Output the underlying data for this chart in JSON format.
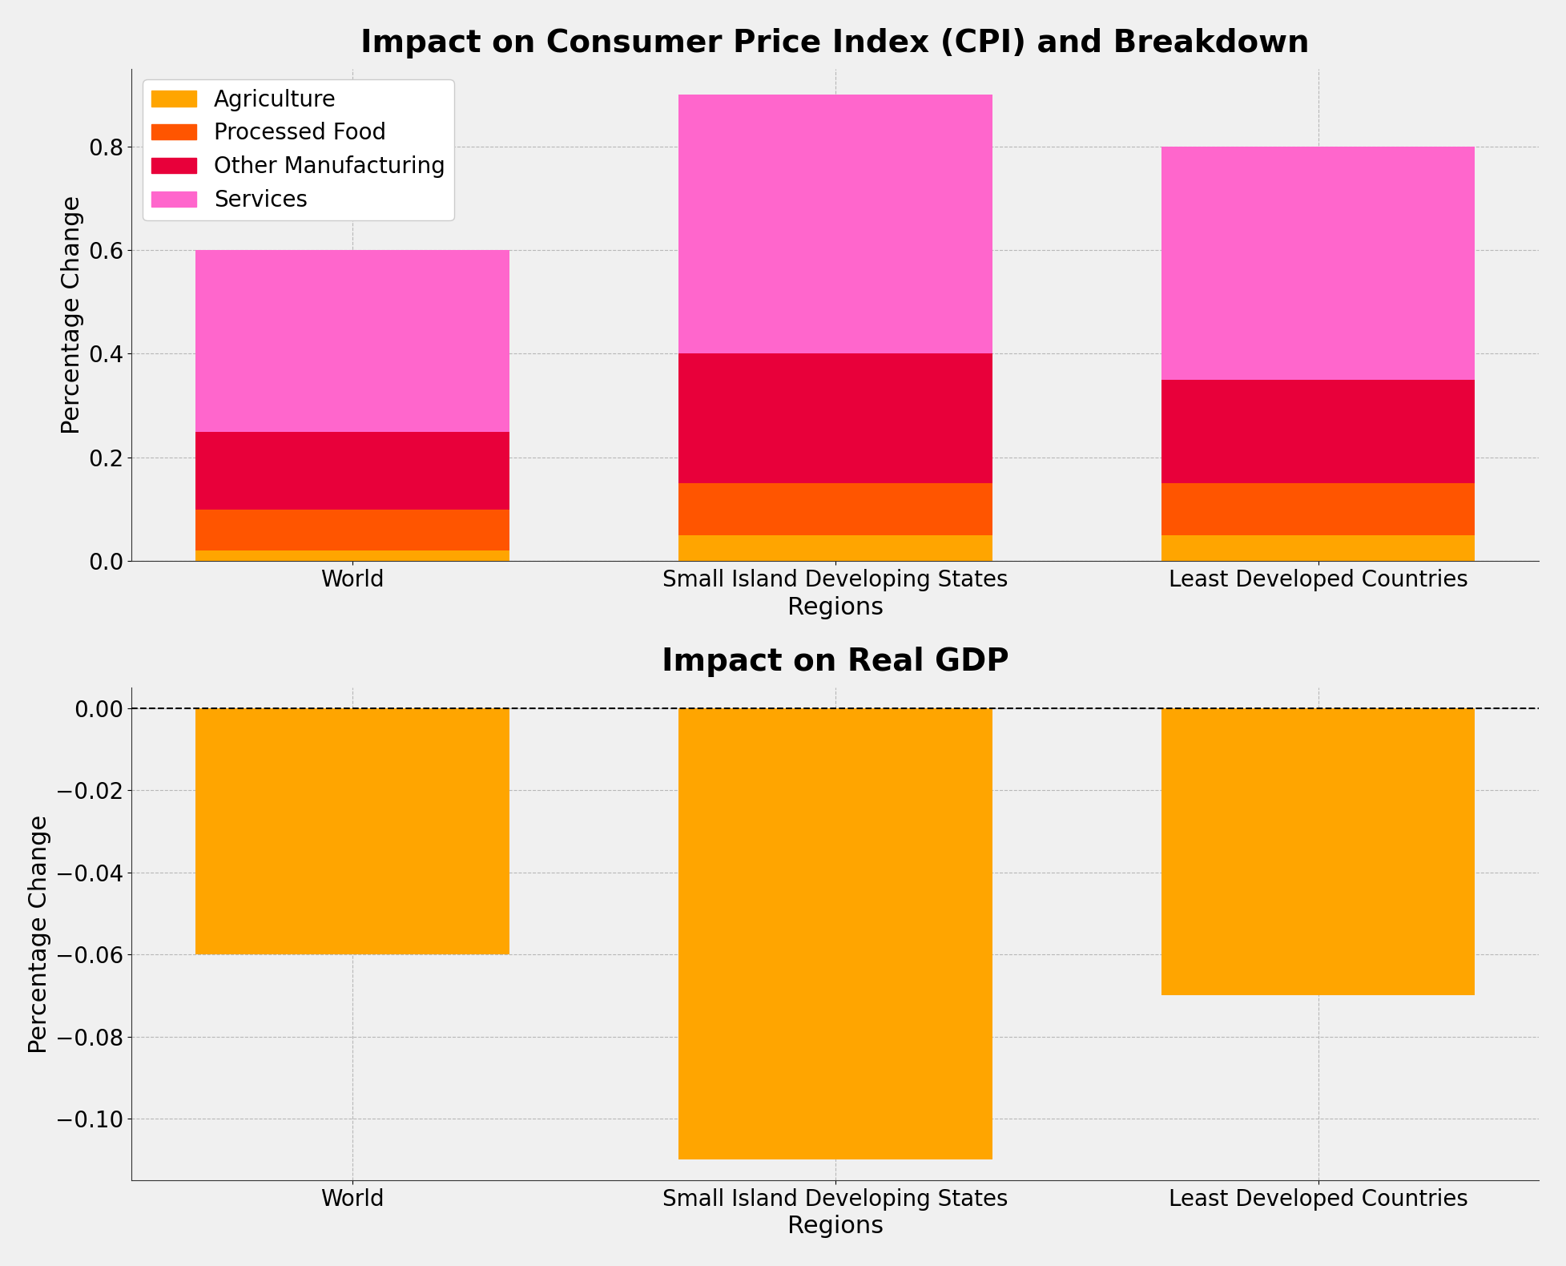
{
  "regions": [
    "World",
    "Small Island Developing States",
    "Least Developed Countries"
  ],
  "cpi_title": "Impact on Consumer Price Index (CPI) and Breakdown",
  "gdp_title": "Impact on Real GDP",
  "xlabel": "Regions",
  "ylabel": "Percentage Change",
  "cpi_segments": {
    "Agriculture": [
      0.02,
      0.05,
      0.05
    ],
    "Processed Food": [
      0.08,
      0.1,
      0.1
    ],
    "Other Manufacturing": [
      0.15,
      0.25,
      0.2
    ],
    "Services": [
      0.35,
      0.5,
      0.45
    ]
  },
  "cpi_colors": {
    "Agriculture": "#FFA500",
    "Processed Food": "#FF5500",
    "Other Manufacturing": "#E8003A",
    "Services": "#FF66CC"
  },
  "gdp_values": [
    -0.06,
    -0.11,
    -0.07
  ],
  "gdp_color": "#FFA500",
  "background_color": "#F0F0F0",
  "plot_background_color": "#F0F0F0",
  "grid_color": "#AAAAAA",
  "title_fontsize": 28,
  "axis_label_fontsize": 22,
  "tick_fontsize": 20,
  "legend_fontsize": 20,
  "bar_width": 0.65,
  "cpi_ylim": [
    0,
    0.95
  ],
  "cpi_yticks": [
    0.0,
    0.2,
    0.4,
    0.6,
    0.8
  ],
  "gdp_ylim": [
    -0.115,
    0.005
  ],
  "gdp_yticks": [
    0.0,
    -0.02,
    -0.04,
    -0.06,
    -0.08,
    -0.1
  ]
}
